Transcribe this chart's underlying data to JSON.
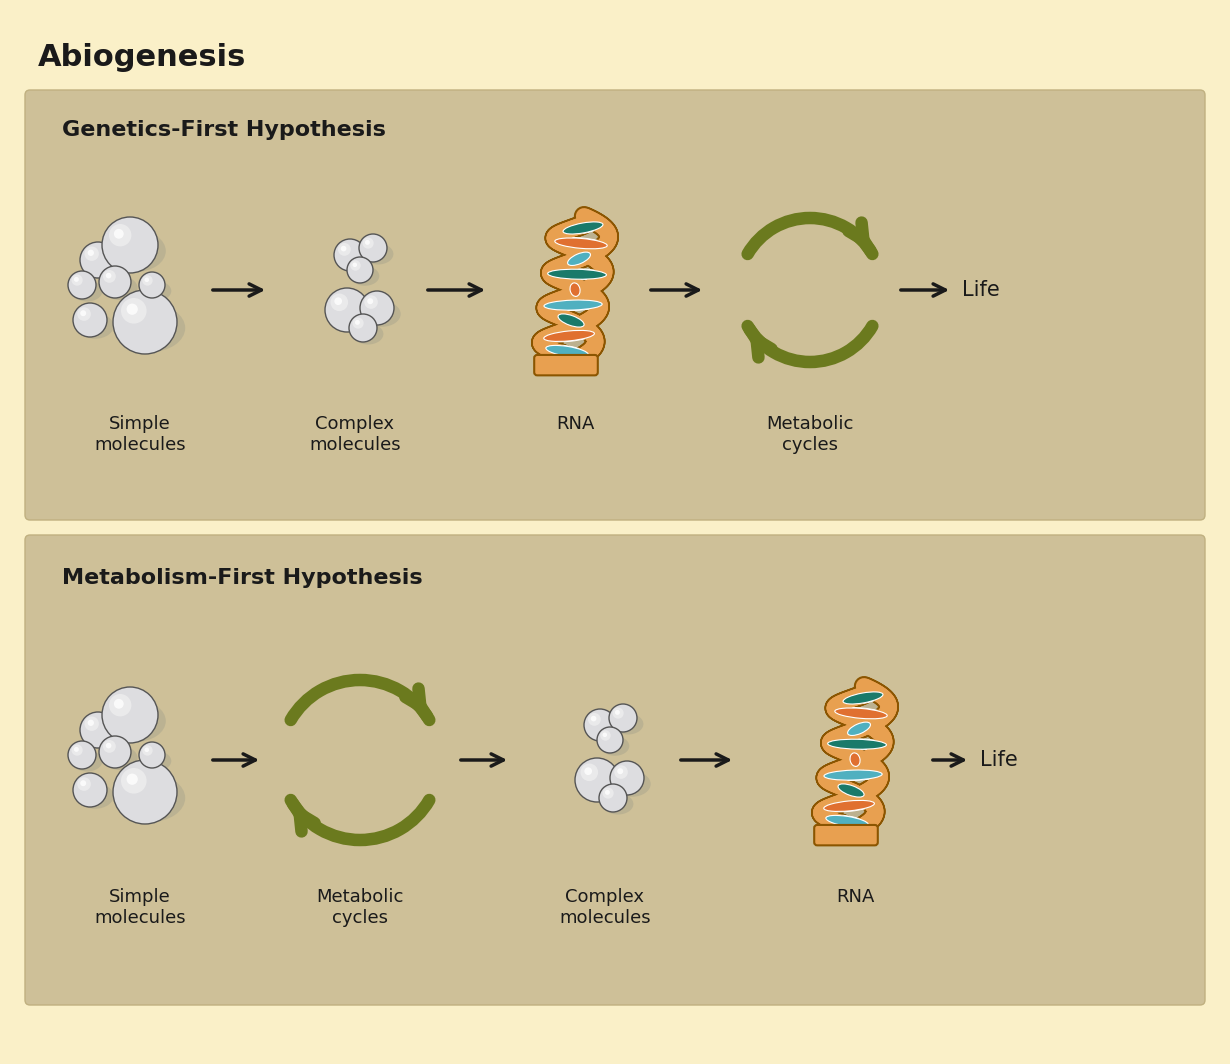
{
  "bg_color": "#FAF0C8",
  "panel_color": "#CEC098",
  "title": "Abiogenesis",
  "title_color": "#1a1a1a",
  "title_fontsize": 22,
  "panel1_title": "Genetics-First Hypothesis",
  "panel2_title": "Metabolism-First Hypothesis",
  "panel_title_fontsize": 16,
  "label_fontsize": 13,
  "life_fontsize": 15,
  "olive_color": "#6B7A1E",
  "arrow_color": "#1a1a1a",
  "molecule_fill": "#DDDDE0",
  "molecule_edge": "#555555",
  "rna_backbone_color": "#E8A050",
  "rna_backbone_edge": "#8B5500",
  "rna_strand1_color": "#1A7A6A",
  "rna_strand2_color": "#E07030",
  "rna_strand3_color": "#50B0C0",
  "panel1_steps": [
    "Simple\nmolecules",
    "Complex\nmolecules",
    "RNA",
    "Metabolic\ncycles"
  ],
  "panel2_steps": [
    "Simple\nmolecules",
    "Metabolic\ncycles",
    "Complex\nmolecules",
    "RNA"
  ]
}
